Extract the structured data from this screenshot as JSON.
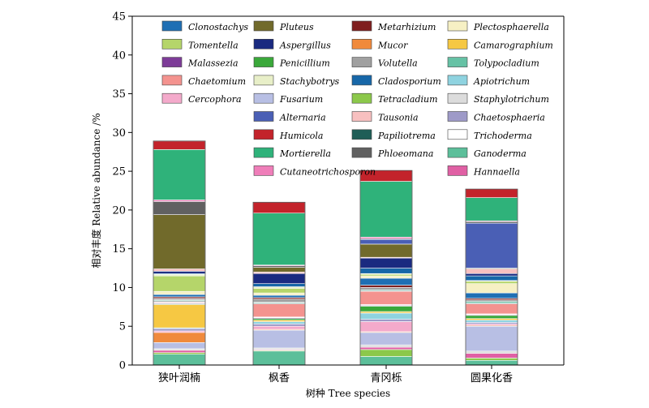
{
  "chart_data": {
    "type": "bar",
    "stacked": true,
    "title": "",
    "xlabel": "树种 Tree species",
    "ylabel": "相对丰度 Relative abundance /%",
    "ylim": [
      0,
      45
    ],
    "yticks": [
      0,
      5,
      10,
      15,
      20,
      25,
      30,
      35,
      40,
      45
    ],
    "grid": false,
    "legend_position": "top",
    "categories": [
      "狭叶润楠",
      "枫香",
      "青冈栎",
      "圆果化香"
    ],
    "series": [
      {
        "name": "Ganoderma",
        "color": "#5cbf9a",
        "values": [
          1.4,
          1.8,
          1.1,
          0.6
        ]
      },
      {
        "name": "Tetracladium",
        "color": "#8cc84b",
        "values": [
          0.2,
          0.1,
          0.9,
          0.3
        ]
      },
      {
        "name": "Hannaella",
        "color": "#e060a4",
        "values": [
          0.3,
          0.1,
          0.3,
          0.6
        ]
      },
      {
        "name": "Staphylotrichum",
        "color": "#dcdcdc",
        "values": [
          0.2,
          0.2,
          0.3,
          0.3
        ]
      },
      {
        "name": "Fusarium",
        "color": "#b8bfe4",
        "values": [
          0.8,
          2.3,
          1.6,
          3.2
        ]
      },
      {
        "name": "Mucor",
        "color": "#f08a3c",
        "values": [
          1.3,
          0.1,
          0.1,
          0.1
        ]
      },
      {
        "name": "Cercophora",
        "color": "#f4aacb",
        "values": [
          0.2,
          0.4,
          1.3,
          0.2
        ]
      },
      {
        "name": "Chaetosphaeria",
        "color": "#9e9ac8",
        "values": [
          0.3,
          0.3,
          0.3,
          0.2
        ]
      },
      {
        "name": "Apiotrichum",
        "color": "#8fd3e0",
        "values": [
          0.1,
          0.3,
          0.8,
          0.3
        ]
      },
      {
        "name": "Camarographium",
        "color": "#f6c843",
        "values": [
          3.0,
          0.2,
          0.2,
          0.2
        ]
      },
      {
        "name": "Penicillium",
        "color": "#3aa83a",
        "values": [
          0.1,
          0.2,
          0.7,
          0.4
        ]
      },
      {
        "name": "Malassezia",
        "color": "#7d3c98",
        "values": [
          0.1,
          0.1,
          0.1,
          0.1
        ]
      },
      {
        "name": "Trichoderma",
        "color": "#ffffff",
        "values": [
          0.1,
          0.1,
          0.1,
          0.1
        ]
      },
      {
        "name": "Chaetomium",
        "color": "#f4938f",
        "values": [
          0.1,
          1.7,
          1.7,
          1.3
        ]
      },
      {
        "name": "Papiliotrema",
        "color": "#1f5e57",
        "values": [
          0.1,
          0.1,
          0.1,
          0.1
        ]
      },
      {
        "name": "Tolypocladium",
        "color": "#66c2a5",
        "values": [
          0.1,
          0.1,
          0.1,
          0.2
        ]
      },
      {
        "name": "Volutella",
        "color": "#a0a0a0",
        "values": [
          0.2,
          0.4,
          0.3,
          0.2
        ]
      },
      {
        "name": "Metarhizium",
        "color": "#7f1f1f",
        "values": [
          0.2,
          0.2,
          0.3,
          0.2
        ]
      },
      {
        "name": "Clonostachys",
        "color": "#1f6fb4",
        "values": [
          0.3,
          0.3,
          0.9,
          0.7
        ]
      },
      {
        "name": "Plectosphaerella",
        "color": "#f6f0c4",
        "values": [
          0.4,
          0.3,
          0.3,
          1.2
        ]
      },
      {
        "name": "Tomentella",
        "color": "#b5d56a",
        "values": [
          2.0,
          0.6,
          0.2,
          0.3
        ]
      },
      {
        "name": "Stachybotrys",
        "color": "#e8efc8",
        "values": [
          0.2,
          0.2,
          0.1,
          0.1
        ]
      },
      {
        "name": "Cladosporium",
        "color": "#1767a8",
        "values": [
          0.1,
          0.4,
          0.7,
          0.6
        ]
      },
      {
        "name": "Aspergillus",
        "color": "#1a2a80",
        "values": [
          0.3,
          1.3,
          1.3,
          0.3
        ]
      },
      {
        "name": "Tausonia",
        "color": "#f8c0c0",
        "values": [
          0.3,
          0.2,
          0.1,
          0.6
        ]
      },
      {
        "name": "Pluteus",
        "color": "#716a2b",
        "values": [
          7.0,
          0.6,
          1.7,
          0.1
        ]
      },
      {
        "name": "Alternaria",
        "color": "#4a5fb5",
        "values": [
          0.0,
          0.0,
          0.6,
          5.8
        ]
      },
      {
        "name": "Phloeomana",
        "color": "#616161",
        "values": [
          1.7,
          0.2,
          0.1,
          0.2
        ]
      },
      {
        "name": "Cutaneotrichosporon",
        "color": "#ef7eb9",
        "values": [
          0.2,
          0.1,
          0.2,
          0.1
        ]
      },
      {
        "name": "Mortierella",
        "color": "#2fb27a",
        "values": [
          6.5,
          6.7,
          7.2,
          3.0
        ]
      },
      {
        "name": "Humicola",
        "color": "#c3232b",
        "values": [
          1.1,
          1.4,
          1.4,
          1.1
        ]
      }
    ]
  },
  "legend_order": [
    "Clonostachys",
    "Pluteus",
    "Metarhizium",
    "Plectosphaerella",
    "Tomentella",
    "Aspergillus",
    "Mucor",
    "Camarographium",
    "Malassezia",
    "Penicillium",
    "Volutella",
    "Tolypocladium",
    "Chaetomium",
    "Stachybotrys",
    "Cladosporium",
    "Apiotrichum",
    "Cercophora",
    "Fusarium",
    "Tetracladium",
    "Staphylotrichum",
    "",
    "Alternaria",
    "Tausonia",
    "Chaetosphaeria",
    "",
    "Humicola",
    "Papiliotrema",
    "Trichoderma",
    "",
    "Mortierella",
    "Phloeomana",
    "Ganoderma",
    "",
    "Cutaneotrichosporon",
    "",
    "Hannaella"
  ]
}
